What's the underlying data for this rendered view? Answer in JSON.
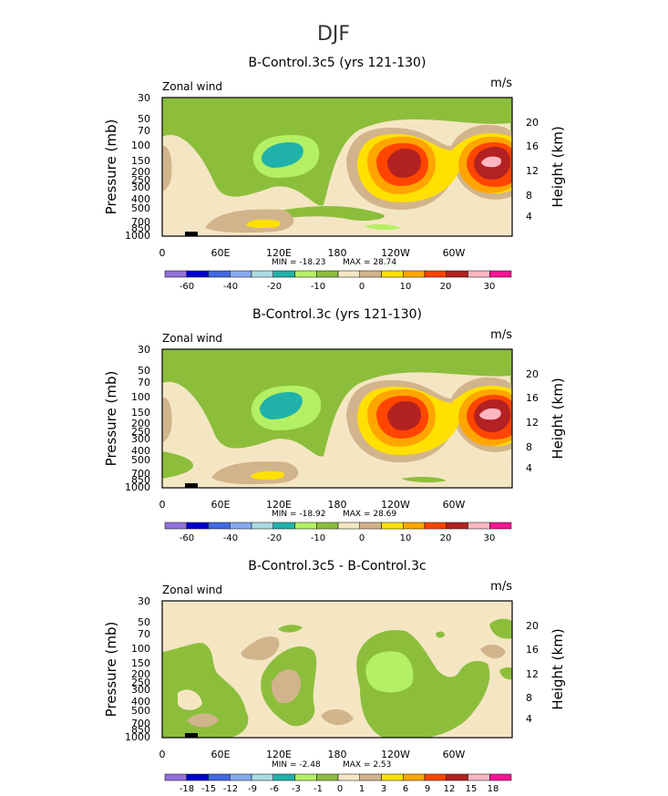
{
  "page": {
    "title": "DJF"
  },
  "chart_data": [
    {
      "type": "contour",
      "title": "B-Control.3c5 (yrs 121-130)",
      "variable_label": "Zonal wind",
      "units": "m/s",
      "ylabel": "Pressure (mb)",
      "y2label": "Height (km)",
      "x_ticks": [
        "0",
        "60E",
        "120E",
        "180",
        "120W",
        "60W"
      ],
      "y_ticks": [
        "30",
        "50",
        "70",
        "100",
        "150",
        "200",
        "250",
        "300",
        "400",
        "500",
        "700",
        "850",
        "1000"
      ],
      "y2_ticks": [
        "20",
        "16",
        "12",
        "8",
        "4"
      ],
      "min_label": "MIN = -18.23",
      "max_label": "MAX = 28.74",
      "min": -18.23,
      "max": 28.74,
      "colorbar_labels": [
        "-60",
        "-40",
        "-20",
        "-10",
        "0",
        "10",
        "20",
        "30"
      ]
    },
    {
      "type": "contour",
      "title": "B-Control.3c (yrs 121-130)",
      "variable_label": "Zonal wind",
      "units": "m/s",
      "ylabel": "Pressure (mb)",
      "y2label": "Height (km)",
      "x_ticks": [
        "0",
        "60E",
        "120E",
        "180",
        "120W",
        "60W"
      ],
      "y_ticks": [
        "30",
        "50",
        "70",
        "100",
        "150",
        "200",
        "250",
        "300",
        "400",
        "500",
        "700",
        "850",
        "1000"
      ],
      "y2_ticks": [
        "20",
        "16",
        "12",
        "8",
        "4"
      ],
      "min_label": "MIN = -18.92",
      "max_label": "MAX = 28.69",
      "min": -18.92,
      "max": 28.69,
      "colorbar_labels": [
        "-60",
        "-40",
        "-20",
        "-10",
        "0",
        "10",
        "20",
        "30"
      ]
    },
    {
      "type": "contour",
      "title": "B-Control.3c5 - B-Control.3c",
      "variable_label": "Zonal wind",
      "units": "m/s",
      "ylabel": "Pressure (mb)",
      "y2label": "Height (km)",
      "x_ticks": [
        "0",
        "60E",
        "120E",
        "180",
        "120W",
        "60W"
      ],
      "y_ticks": [
        "30",
        "50",
        "70",
        "100",
        "150",
        "200",
        "250",
        "300",
        "400",
        "500",
        "700",
        "850",
        "1000"
      ],
      "y2_ticks": [
        "20",
        "16",
        "12",
        "8",
        "4"
      ],
      "min_label": "MIN = -2.48",
      "max_label": "MAX = 2.53",
      "min": -2.48,
      "max": 2.53,
      "colorbar_labels": [
        "-18",
        "-15",
        "-12",
        "-9",
        "-6",
        "-3",
        "-1",
        "0",
        "1",
        "3",
        "6",
        "9",
        "12",
        "15",
        "18"
      ]
    }
  ],
  "colors": {
    "palette": [
      "#9370db",
      "#0000cd",
      "#4169e1",
      "#87a9f0",
      "#a9dbe0",
      "#20b2aa",
      "#b4f064",
      "#8cbe3c",
      "#f5e6c3",
      "#d2b48c",
      "#ffe000",
      "#ffa500",
      "#ff4500",
      "#b22222",
      "#ffb6c1",
      "#ff1493"
    ],
    "tan": "#f5e6c3",
    "green": "#8cbe3c",
    "lightgreen": "#b4f064",
    "teal": "#20b2aa",
    "khaki": "#d2b48c",
    "yellow": "#ffe000",
    "orange": "#ffa500",
    "red": "#ff4500",
    "darkred": "#b22222",
    "pink": "#ffb6c1"
  }
}
